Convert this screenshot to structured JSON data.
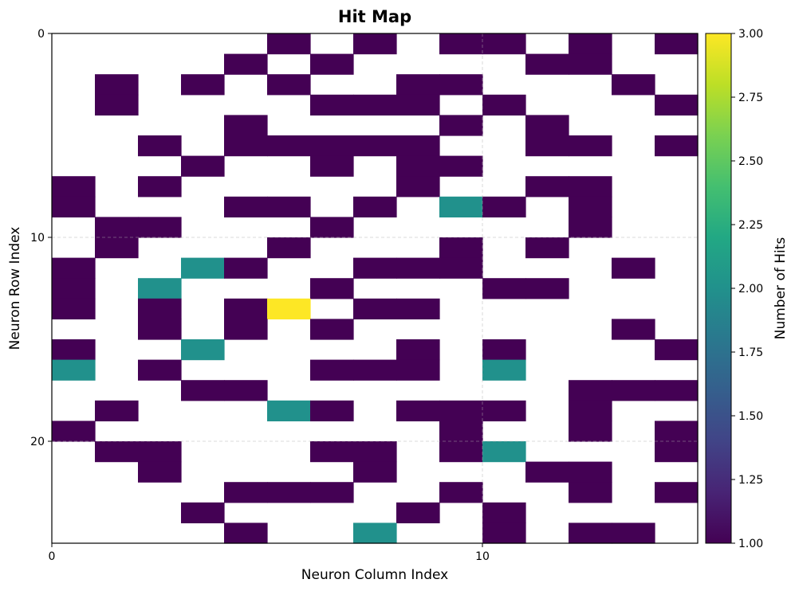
{
  "chart_data": {
    "type": "heatmap",
    "title": "Hit Map",
    "xlabel": "Neuron Column Index",
    "ylabel": "Neuron Row Index",
    "colorbar_label": "Number of Hits",
    "colormap": "viridis",
    "empty_cell_color": "#ffffff",
    "n_cols": 15,
    "n_rows": 25,
    "xlim": [
      0,
      15
    ],
    "ylim": [
      25,
      0
    ],
    "x_ticks": [
      0,
      10
    ],
    "y_ticks": [
      0,
      10,
      20
    ],
    "grid": true,
    "colorbar_range": [
      1.0,
      3.0
    ],
    "colorbar_ticks": [
      "1.00",
      "1.25",
      "1.50",
      "1.75",
      "2.00",
      "2.25",
      "2.50",
      "2.75",
      "3.00"
    ],
    "cells": [
      [
        0,
        5,
        1
      ],
      [
        0,
        7,
        1
      ],
      [
        0,
        9,
        1
      ],
      [
        0,
        10,
        1
      ],
      [
        0,
        12,
        1
      ],
      [
        0,
        14,
        1
      ],
      [
        1,
        4,
        1
      ],
      [
        1,
        6,
        1
      ],
      [
        1,
        11,
        1
      ],
      [
        1,
        12,
        1
      ],
      [
        2,
        1,
        1
      ],
      [
        2,
        3,
        1
      ],
      [
        2,
        5,
        1
      ],
      [
        2,
        8,
        1
      ],
      [
        2,
        9,
        1
      ],
      [
        2,
        13,
        1
      ],
      [
        3,
        1,
        1
      ],
      [
        3,
        6,
        1
      ],
      [
        3,
        7,
        1
      ],
      [
        3,
        8,
        1
      ],
      [
        3,
        10,
        1
      ],
      [
        3,
        14,
        1
      ],
      [
        4,
        4,
        1
      ],
      [
        4,
        9,
        1
      ],
      [
        4,
        11,
        1
      ],
      [
        5,
        2,
        1
      ],
      [
        5,
        4,
        1
      ],
      [
        5,
        5,
        1
      ],
      [
        5,
        6,
        1
      ],
      [
        5,
        7,
        1
      ],
      [
        5,
        8,
        1
      ],
      [
        5,
        11,
        1
      ],
      [
        5,
        12,
        1
      ],
      [
        5,
        14,
        1
      ],
      [
        6,
        3,
        1
      ],
      [
        6,
        6,
        1
      ],
      [
        6,
        8,
        1
      ],
      [
        6,
        9,
        1
      ],
      [
        7,
        0,
        1
      ],
      [
        7,
        2,
        1
      ],
      [
        7,
        8,
        1
      ],
      [
        7,
        11,
        1
      ],
      [
        7,
        12,
        1
      ],
      [
        8,
        0,
        1
      ],
      [
        8,
        4,
        1
      ],
      [
        8,
        5,
        1
      ],
      [
        8,
        7,
        1
      ],
      [
        8,
        9,
        2
      ],
      [
        8,
        10,
        1
      ],
      [
        8,
        12,
        1
      ],
      [
        9,
        1,
        1
      ],
      [
        9,
        2,
        1
      ],
      [
        9,
        6,
        1
      ],
      [
        9,
        12,
        1
      ],
      [
        10,
        1,
        1
      ],
      [
        10,
        5,
        1
      ],
      [
        10,
        9,
        1
      ],
      [
        10,
        11,
        1
      ],
      [
        11,
        0,
        1
      ],
      [
        11,
        3,
        2
      ],
      [
        11,
        4,
        1
      ],
      [
        11,
        7,
        1
      ],
      [
        11,
        8,
        1
      ],
      [
        11,
        9,
        1
      ],
      [
        11,
        13,
        1
      ],
      [
        12,
        0,
        1
      ],
      [
        12,
        2,
        2
      ],
      [
        12,
        6,
        1
      ],
      [
        12,
        10,
        1
      ],
      [
        12,
        11,
        1
      ],
      [
        13,
        0,
        1
      ],
      [
        13,
        2,
        1
      ],
      [
        13,
        4,
        1
      ],
      [
        13,
        5,
        3
      ],
      [
        13,
        7,
        1
      ],
      [
        13,
        8,
        1
      ],
      [
        14,
        2,
        1
      ],
      [
        14,
        4,
        1
      ],
      [
        14,
        6,
        1
      ],
      [
        14,
        13,
        1
      ],
      [
        15,
        0,
        1
      ],
      [
        15,
        3,
        2
      ],
      [
        15,
        8,
        1
      ],
      [
        15,
        10,
        1
      ],
      [
        15,
        14,
        1
      ],
      [
        16,
        0,
        2
      ],
      [
        16,
        2,
        1
      ],
      [
        16,
        6,
        1
      ],
      [
        16,
        7,
        1
      ],
      [
        16,
        8,
        1
      ],
      [
        16,
        10,
        2
      ],
      [
        17,
        3,
        1
      ],
      [
        17,
        4,
        1
      ],
      [
        17,
        12,
        1
      ],
      [
        17,
        13,
        1
      ],
      [
        17,
        14,
        1
      ],
      [
        18,
        1,
        1
      ],
      [
        18,
        5,
        2
      ],
      [
        18,
        6,
        1
      ],
      [
        18,
        8,
        1
      ],
      [
        18,
        9,
        1
      ],
      [
        18,
        10,
        1
      ],
      [
        18,
        12,
        1
      ],
      [
        19,
        0,
        1
      ],
      [
        19,
        9,
        1
      ],
      [
        19,
        12,
        1
      ],
      [
        19,
        14,
        1
      ],
      [
        20,
        1,
        1
      ],
      [
        20,
        2,
        1
      ],
      [
        20,
        6,
        1
      ],
      [
        20,
        7,
        1
      ],
      [
        20,
        9,
        1
      ],
      [
        20,
        10,
        2
      ],
      [
        20,
        14,
        1
      ],
      [
        21,
        2,
        1
      ],
      [
        21,
        7,
        1
      ],
      [
        21,
        11,
        1
      ],
      [
        21,
        12,
        1
      ],
      [
        22,
        4,
        1
      ],
      [
        22,
        5,
        1
      ],
      [
        22,
        6,
        1
      ],
      [
        22,
        9,
        1
      ],
      [
        22,
        12,
        1
      ],
      [
        22,
        14,
        1
      ],
      [
        23,
        3,
        1
      ],
      [
        23,
        8,
        1
      ],
      [
        23,
        10,
        1
      ],
      [
        24,
        4,
        1
      ],
      [
        24,
        7,
        2
      ],
      [
        24,
        10,
        1
      ],
      [
        24,
        12,
        1
      ],
      [
        24,
        13,
        1
      ]
    ]
  }
}
